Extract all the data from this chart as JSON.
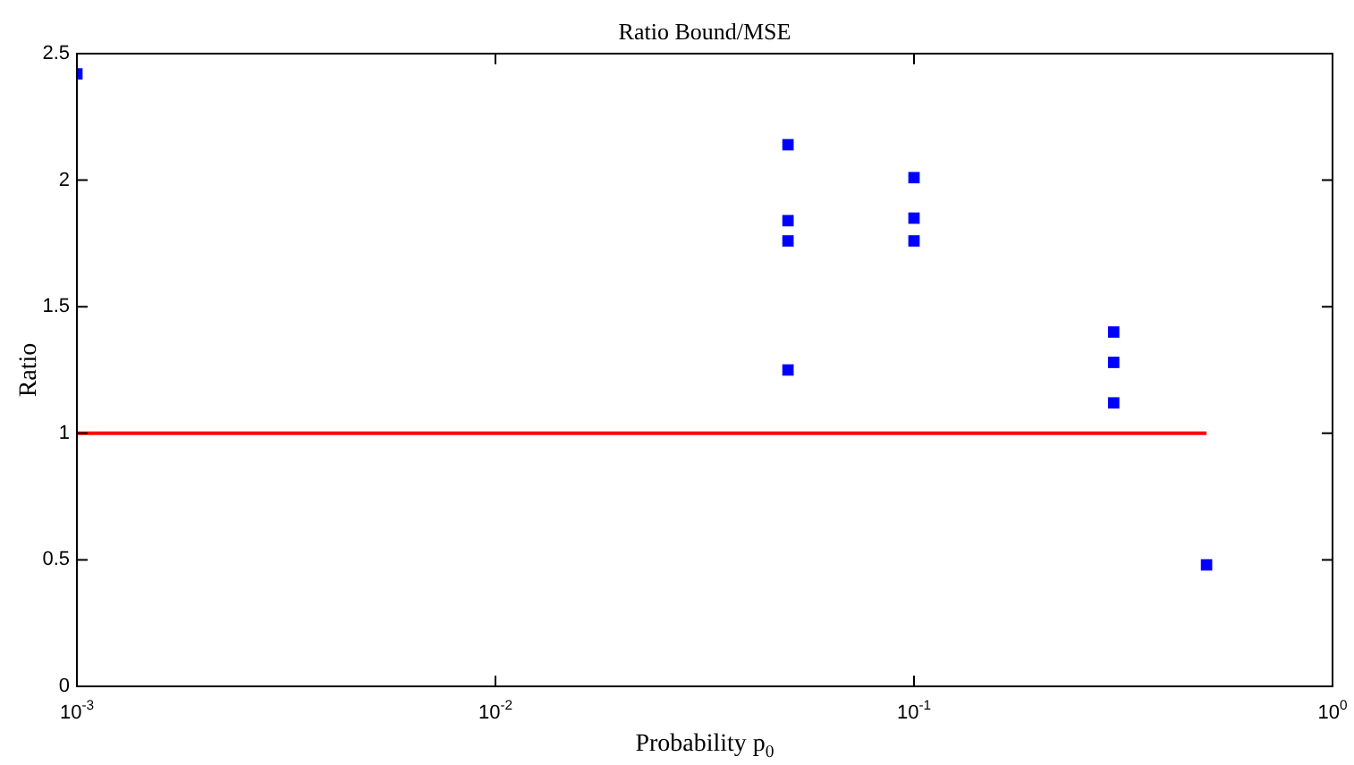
{
  "chart_data": {
    "type": "scatter",
    "title": "Ratio Bound/MSE",
    "xlabel": "Probability p$_{0}$",
    "ylabel": "Ratio",
    "log": "x",
    "grid": false,
    "legend": false,
    "marker": "square",
    "xlim": [
      0.001,
      1
    ],
    "xticks": [
      {
        "value": 0.001,
        "label": "10$^{-3}$"
      },
      {
        "value": 0.01,
        "label": "10$^{-2}$"
      },
      {
        "value": 0.1,
        "label": "10$^{-1}$"
      },
      {
        "value": 1,
        "label": "10$^{0}$"
      }
    ],
    "ylim": [
      0,
      2.5
    ],
    "yticks": [
      0,
      0.5,
      1,
      1.5,
      2,
      2.5
    ],
    "series": [
      {
        "color": "#0000ff",
        "x": [
          0.001,
          0.05,
          0.05,
          0.05,
          0.05,
          0.1,
          0.1,
          0.1,
          0.3,
          0.3,
          0.3,
          0.5
        ],
        "values": [
          2.42,
          2.14,
          1.84,
          1.76,
          1.25,
          2.01,
          1.85,
          1.76,
          1.4,
          1.28,
          1.12,
          0.48
        ]
      },
      {
        "type": "line",
        "marker": "none",
        "color": "#ff0000",
        "x": [
          0.001,
          0.5
        ],
        "values": [
          1,
          1
        ]
      }
    ]
  }
}
